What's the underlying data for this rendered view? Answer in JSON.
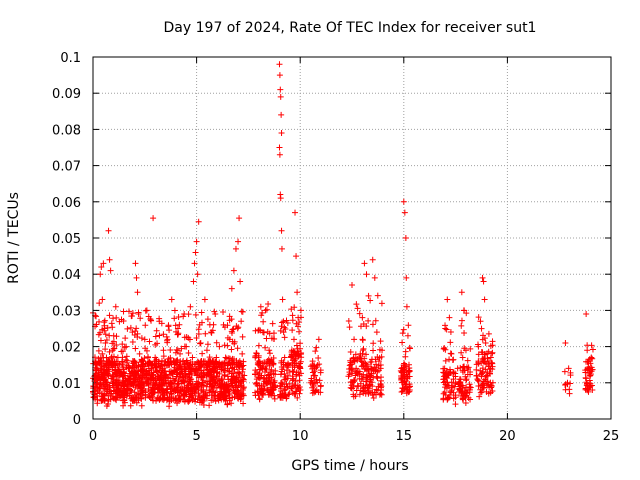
{
  "chart_data": {
    "type": "scatter",
    "title": "Day 197 of 2024, Rate Of TEC Index for receiver sut1",
    "xlabel": "GPS time / hours",
    "ylabel": "ROTI / TECUs",
    "xlim": [
      0,
      25
    ],
    "ylim": [
      0,
      0.1
    ],
    "xticks": [
      0,
      5,
      10,
      15,
      20,
      25
    ],
    "xtick_labels": [
      "0",
      "5",
      "10",
      "15",
      "20",
      "25"
    ],
    "yticks": [
      0,
      0.01,
      0.02,
      0.03,
      0.04,
      0.05,
      0.06,
      0.07,
      0.08,
      0.09,
      0.1
    ],
    "ytick_labels": [
      "0",
      "0.01",
      "0.02",
      "0.03",
      "0.04",
      "0.05",
      "0.06",
      "0.07",
      "0.08",
      "0.09",
      "0.1"
    ],
    "grid": true,
    "marker": "+",
    "series_color": "#ff0000",
    "series": [
      {
        "points": [
          [
            0.05,
            0.009
          ],
          [
            0.1,
            0.012
          ],
          [
            0.15,
            0.011
          ],
          [
            0.2,
            0.014
          ],
          [
            0.25,
            0.008
          ],
          [
            0.3,
            0.016
          ],
          [
            0.35,
            0.01
          ],
          [
            0.4,
            0.013
          ],
          [
            0.45,
            0.018
          ],
          [
            0.5,
            0.011
          ],
          [
            0.3,
            0.032
          ],
          [
            0.35,
            0.04
          ],
          [
            0.4,
            0.042
          ],
          [
            0.45,
            0.033
          ],
          [
            0.5,
            0.043
          ],
          [
            0.55,
            0.025
          ],
          [
            0.6,
            0.021
          ],
          [
            0.65,
            0.017
          ],
          [
            0.7,
            0.009
          ],
          [
            0.75,
            0.012
          ],
          [
            0.8,
            0.044
          ],
          [
            0.85,
            0.041
          ],
          [
            0.9,
            0.015
          ],
          [
            0.95,
            0.019
          ],
          [
            1.0,
            0.023
          ],
          [
            0.75,
            0.052
          ],
          [
            1.05,
            0.013
          ],
          [
            1.1,
            0.031
          ],
          [
            1.15,
            0.01
          ],
          [
            1.2,
            0.017
          ],
          [
            1.3,
            0.012
          ],
          [
            1.4,
            0.015
          ],
          [
            1.5,
            0.009
          ],
          [
            1.6,
            0.02
          ],
          [
            1.7,
            0.014
          ],
          [
            1.8,
            0.011
          ],
          [
            1.9,
            0.024
          ],
          [
            2.0,
            0.013
          ],
          [
            2.05,
            0.043
          ],
          [
            2.1,
            0.039
          ],
          [
            2.15,
            0.035
          ],
          [
            2.2,
            0.029
          ],
          [
            2.25,
            0.018
          ],
          [
            2.3,
            0.012
          ],
          [
            2.4,
            0.016
          ],
          [
            2.5,
            0.022
          ],
          [
            2.6,
            0.03
          ],
          [
            2.7,
            0.014
          ],
          [
            2.8,
            0.011
          ],
          [
            2.9,
            0.0555
          ],
          [
            3.0,
            0.017
          ],
          [
            3.1,
            0.013
          ],
          [
            3.2,
            0.027
          ],
          [
            3.3,
            0.01
          ],
          [
            3.4,
            0.019
          ],
          [
            3.5,
            0.012
          ],
          [
            3.6,
            0.022
          ],
          [
            3.7,
            0.015
          ],
          [
            3.8,
            0.033
          ],
          [
            3.9,
            0.016
          ],
          [
            4.0,
            0.011
          ],
          [
            4.1,
            0.025
          ],
          [
            4.2,
            0.018
          ],
          [
            4.3,
            0.013
          ],
          [
            4.4,
            0.029
          ],
          [
            4.5,
            0.02
          ],
          [
            4.6,
            0.014
          ],
          [
            4.7,
            0.031
          ],
          [
            4.8,
            0.017
          ],
          [
            4.85,
            0.038
          ],
          [
            4.9,
            0.043
          ],
          [
            4.95,
            0.046
          ],
          [
            5.0,
            0.049
          ],
          [
            5.05,
            0.04
          ],
          [
            5.1,
            0.0545
          ],
          [
            5.15,
            0.026
          ],
          [
            5.2,
            0.021
          ],
          [
            5.3,
            0.015
          ],
          [
            5.4,
            0.033
          ],
          [
            5.5,
            0.019
          ],
          [
            5.6,
            0.012
          ],
          [
            5.7,
            0.024
          ],
          [
            5.8,
            0.016
          ],
          [
            5.9,
            0.029
          ],
          [
            6.0,
            0.013
          ],
          [
            6.1,
            0.02
          ],
          [
            6.2,
            0.011
          ],
          [
            6.3,
            0.026
          ],
          [
            6.4,
            0.017
          ],
          [
            6.5,
            0.014
          ],
          [
            6.6,
            0.022
          ],
          [
            6.7,
            0.036
          ],
          [
            6.8,
            0.041
          ],
          [
            6.9,
            0.047
          ],
          [
            7.0,
            0.049
          ],
          [
            7.05,
            0.0555
          ],
          [
            7.1,
            0.038
          ],
          [
            7.15,
            0.027
          ],
          [
            7.2,
            0.018
          ],
          [
            7.3,
            0.012
          ],
          [
            7.9,
            0.01
          ],
          [
            8.0,
            0.016
          ],
          [
            8.1,
            0.031
          ],
          [
            8.2,
            0.024
          ],
          [
            8.3,
            0.013
          ],
          [
            8.4,
            0.008
          ],
          [
            8.5,
            0.019
          ],
          [
            8.6,
            0.011
          ],
          [
            8.7,
            0.015
          ],
          [
            8.8,
            0.009
          ],
          [
            9.0,
            0.098
          ],
          [
            9.02,
            0.095
          ],
          [
            9.04,
            0.091
          ],
          [
            9.06,
            0.089
          ],
          [
            9.08,
            0.084
          ],
          [
            9.1,
            0.079
          ],
          [
            9.0,
            0.075
          ],
          [
            9.02,
            0.073
          ],
          [
            9.04,
            0.062
          ],
          [
            9.06,
            0.061
          ],
          [
            9.1,
            0.052
          ],
          [
            9.12,
            0.047
          ],
          [
            9.15,
            0.033
          ],
          [
            9.2,
            0.024
          ],
          [
            9.25,
            0.017
          ],
          [
            9.3,
            0.011
          ],
          [
            9.4,
            0.009
          ],
          [
            9.5,
            0.013
          ],
          [
            9.6,
            0.019
          ],
          [
            9.7,
            0.022
          ],
          [
            9.75,
            0.057
          ],
          [
            9.8,
            0.045
          ],
          [
            9.85,
            0.035
          ],
          [
            9.9,
            0.028
          ],
          [
            10.0,
            0.014
          ],
          [
            10.5,
            0.01
          ],
          [
            10.6,
            0.016
          ],
          [
            10.7,
            0.012
          ],
          [
            10.8,
            0.008
          ],
          [
            10.9,
            0.022
          ],
          [
            12.5,
            0.037
          ],
          [
            12.6,
            0.022
          ],
          [
            12.7,
            0.014
          ],
          [
            12.8,
            0.009
          ],
          [
            12.9,
            0.018
          ],
          [
            13.0,
            0.028
          ],
          [
            13.1,
            0.043
          ],
          [
            13.2,
            0.04
          ],
          [
            13.3,
            0.034
          ],
          [
            13.4,
            0.012
          ],
          [
            13.5,
            0.044
          ],
          [
            13.6,
            0.039
          ],
          [
            13.7,
            0.024
          ],
          [
            13.8,
            0.016
          ],
          [
            13.9,
            0.008
          ],
          [
            13.95,
            0.019
          ],
          [
            14.9,
            0.013
          ],
          [
            15.0,
            0.06
          ],
          [
            15.05,
            0.057
          ],
          [
            15.1,
            0.05
          ],
          [
            15.12,
            0.039
          ],
          [
            15.15,
            0.031
          ],
          [
            15.2,
            0.023
          ],
          [
            15.25,
            0.015
          ],
          [
            15.3,
            0.009
          ],
          [
            17.0,
            0.025
          ],
          [
            17.1,
            0.033
          ],
          [
            17.2,
            0.028
          ],
          [
            17.3,
            0.018
          ],
          [
            17.4,
            0.011
          ],
          [
            17.5,
            0.006
          ],
          [
            17.6,
            0.014
          ],
          [
            17.7,
            0.01
          ],
          [
            17.8,
            0.035
          ],
          [
            17.9,
            0.03
          ],
          [
            18.0,
            0.019
          ],
          [
            18.1,
            0.008
          ],
          [
            18.2,
            0.013
          ],
          [
            18.6,
            0.016
          ],
          [
            18.7,
            0.027
          ],
          [
            18.8,
            0.039
          ],
          [
            18.85,
            0.038
          ],
          [
            18.9,
            0.033
          ],
          [
            18.95,
            0.021
          ],
          [
            19.0,
            0.012
          ],
          [
            19.1,
            0.007
          ],
          [
            19.2,
            0.017
          ],
          [
            19.3,
            0.01
          ],
          [
            22.8,
            0.021
          ],
          [
            22.9,
            0.01
          ],
          [
            23.0,
            0.007
          ],
          [
            23.8,
            0.029
          ],
          [
            23.85,
            0.019
          ],
          [
            23.9,
            0.014
          ],
          [
            23.95,
            0.009
          ],
          [
            24.0,
            0.012
          ],
          [
            24.05,
            0.017
          ],
          [
            24.1,
            0.008
          ]
        ]
      }
    ],
    "clusters": [
      [
        0.0,
        7.3,
        0.0035,
        0.03,
        0.0105,
        1400
      ],
      [
        7.8,
        8.8,
        0.005,
        0.032,
        0.012,
        140
      ],
      [
        9.0,
        9.5,
        0.004,
        0.028,
        0.011,
        60
      ],
      [
        9.55,
        10.05,
        0.005,
        0.032,
        0.013,
        90
      ],
      [
        10.5,
        11.0,
        0.006,
        0.022,
        0.011,
        40
      ],
      [
        12.3,
        13.95,
        0.005,
        0.035,
        0.012,
        170
      ],
      [
        14.85,
        15.3,
        0.006,
        0.026,
        0.011,
        70
      ],
      [
        16.9,
        17.5,
        0.004,
        0.026,
        0.01,
        70
      ],
      [
        17.6,
        18.25,
        0.004,
        0.03,
        0.01,
        70
      ],
      [
        18.5,
        19.3,
        0.006,
        0.029,
        0.013,
        90
      ],
      [
        22.75,
        23.05,
        0.006,
        0.016,
        0.01,
        10
      ],
      [
        23.75,
        24.15,
        0.006,
        0.021,
        0.012,
        45
      ]
    ]
  }
}
